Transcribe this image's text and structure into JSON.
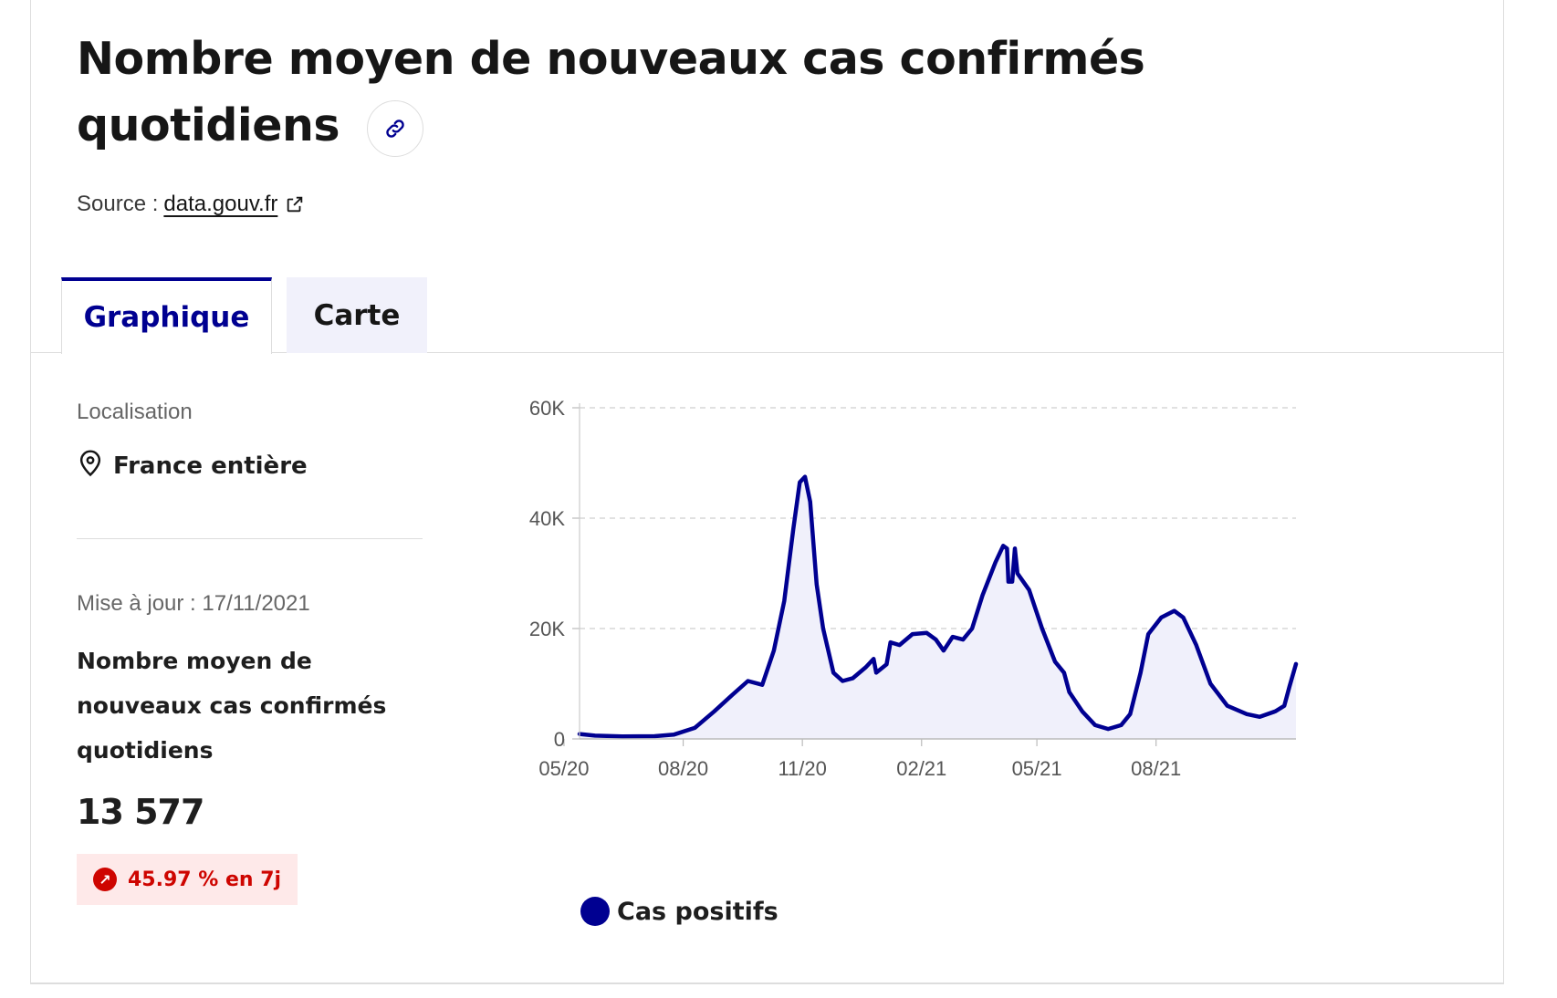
{
  "header": {
    "title": "Nombre moyen de nouveaux cas confirmés quotidiens",
    "source_label": "Source :",
    "source_link": "data.gouv.fr"
  },
  "tabs": [
    {
      "label": "Graphique",
      "active": true
    },
    {
      "label": "Carte",
      "active": false
    }
  ],
  "sidebar": {
    "location_label": "Localisation",
    "location_value": "France entière",
    "updated": "Mise à jour : 17/11/2021",
    "indicator_label": "Nombre moyen de nouveaux cas confirmés quotidiens",
    "value": "13 577",
    "trend": "45.97 % en 7j"
  },
  "icons": {
    "link": "link-icon",
    "external": "external-link-icon",
    "location": "map-pin-icon",
    "trend": "arrow-up-right-icon"
  },
  "colors": {
    "accent": "#000091",
    "series": "#000091",
    "area_fill": "#f0f0fb",
    "trend_text": "#ce0500",
    "trend_bg": "#fee9e9",
    "tab_inactive_bg": "#f1f1fb"
  },
  "chart_data": {
    "type": "area",
    "x_ticks": [
      "05/20",
      "08/20",
      "11/20",
      "02/21",
      "05/21",
      "08/21"
    ],
    "y_ticks": [
      "0",
      "20K",
      "40K",
      "60K"
    ],
    "ylim": [
      0,
      60000
    ],
    "grid": true,
    "legend_position": "bottom-left",
    "series": [
      {
        "name": "Cas positifs",
        "points": [
          [
            "2020-05-13",
            900
          ],
          [
            "2020-05-25",
            600
          ],
          [
            "2020-06-15",
            450
          ],
          [
            "2020-07-10",
            500
          ],
          [
            "2020-07-25",
            800
          ],
          [
            "2020-08-10",
            2000
          ],
          [
            "2020-08-25",
            5000
          ],
          [
            "2020-09-08",
            8000
          ],
          [
            "2020-09-20",
            10500
          ],
          [
            "2020-10-01",
            9800
          ],
          [
            "2020-10-10",
            16000
          ],
          [
            "2020-10-18",
            25000
          ],
          [
            "2020-10-25",
            38000
          ],
          [
            "2020-10-30",
            46500
          ],
          [
            "2020-11-03",
            47500
          ],
          [
            "2020-11-07",
            43000
          ],
          [
            "2020-11-12",
            28000
          ],
          [
            "2020-11-17",
            20000
          ],
          [
            "2020-11-25",
            12000
          ],
          [
            "2020-12-02",
            10500
          ],
          [
            "2020-12-10",
            11000
          ],
          [
            "2020-12-20",
            13000
          ],
          [
            "2020-12-26",
            14500
          ],
          [
            "2020-12-28",
            12000
          ],
          [
            "2021-01-05",
            13500
          ],
          [
            "2021-01-08",
            17500
          ],
          [
            "2021-01-15",
            17000
          ],
          [
            "2021-01-25",
            19000
          ],
          [
            "2021-02-05",
            19200
          ],
          [
            "2021-02-12",
            18000
          ],
          [
            "2021-02-18",
            16000
          ],
          [
            "2021-02-25",
            18500
          ],
          [
            "2021-03-05",
            18000
          ],
          [
            "2021-03-12",
            20000
          ],
          [
            "2021-03-20",
            26000
          ],
          [
            "2021-03-30",
            32000
          ],
          [
            "2021-04-05",
            35000
          ],
          [
            "2021-04-08",
            34500
          ],
          [
            "2021-04-09",
            28500
          ],
          [
            "2021-04-12",
            28500
          ],
          [
            "2021-04-14",
            34500
          ],
          [
            "2021-04-16",
            30000
          ],
          [
            "2021-04-25",
            27000
          ],
          [
            "2021-05-05",
            20000
          ],
          [
            "2021-05-15",
            14000
          ],
          [
            "2021-05-22",
            12000
          ],
          [
            "2021-05-26",
            8500
          ],
          [
            "2021-06-05",
            5000
          ],
          [
            "2021-06-15",
            2500
          ],
          [
            "2021-06-25",
            1800
          ],
          [
            "2021-07-05",
            2500
          ],
          [
            "2021-07-12",
            4500
          ],
          [
            "2021-07-20",
            12000
          ],
          [
            "2021-07-26",
            19000
          ],
          [
            "2021-08-05",
            22000
          ],
          [
            "2021-08-15",
            23200
          ],
          [
            "2021-08-22",
            22000
          ],
          [
            "2021-09-01",
            17000
          ],
          [
            "2021-09-12",
            10000
          ],
          [
            "2021-09-25",
            6000
          ],
          [
            "2021-10-10",
            4500
          ],
          [
            "2021-10-20",
            4000
          ],
          [
            "2021-11-01",
            5000
          ],
          [
            "2021-11-08",
            6000
          ],
          [
            "2021-11-12",
            9500
          ],
          [
            "2021-11-17",
            13577
          ]
        ]
      }
    ]
  }
}
